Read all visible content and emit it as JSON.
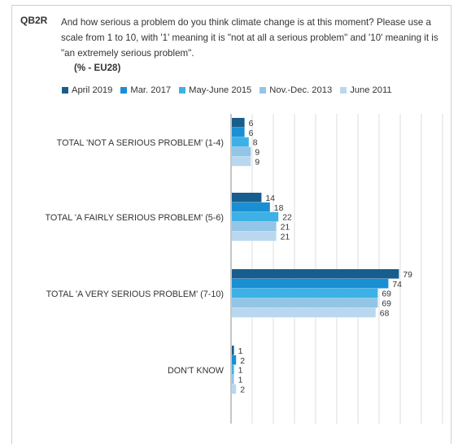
{
  "question": {
    "code": "QB2R",
    "text": "And how serious a problem do you think climate change is at this moment? Please use a scale from 1 to 10, with '1' meaning it is \"not at all a serious problem\" and '10' meaning it is \"an extremely serious problem\".",
    "unit": "(% - EU28)"
  },
  "colors": {
    "April 2019": "#175d8e",
    "Mar. 2017": "#1b8fd3",
    "May-June 2015": "#3db1e6",
    "Nov.-Dec. 2013": "#93c5e6",
    "June 2011": "#b9d8ef"
  },
  "chart_data": {
    "type": "bar",
    "orientation": "horizontal",
    "categories": [
      "TOTAL 'NOT A SERIOUS PROBLEM' (1-4)",
      "TOTAL 'A FAIRLY SERIOUS PROBLEM' (5-6)",
      "TOTAL 'A VERY SERIOUS PROBLEM' (7-10)",
      "DON'T KNOW"
    ],
    "series": [
      {
        "name": "April 2019",
        "values": [
          6,
          14,
          79,
          1
        ]
      },
      {
        "name": "Mar. 2017",
        "values": [
          6,
          18,
          74,
          2
        ]
      },
      {
        "name": "May-June 2015",
        "values": [
          8,
          22,
          69,
          1
        ]
      },
      {
        "name": "Nov.-Dec. 2013",
        "values": [
          9,
          21,
          69,
          1
        ]
      },
      {
        "name": "June 2011",
        "values": [
          9,
          21,
          68,
          2
        ]
      }
    ],
    "xlim": [
      0,
      100
    ],
    "grid": true,
    "legend_position": "top"
  }
}
